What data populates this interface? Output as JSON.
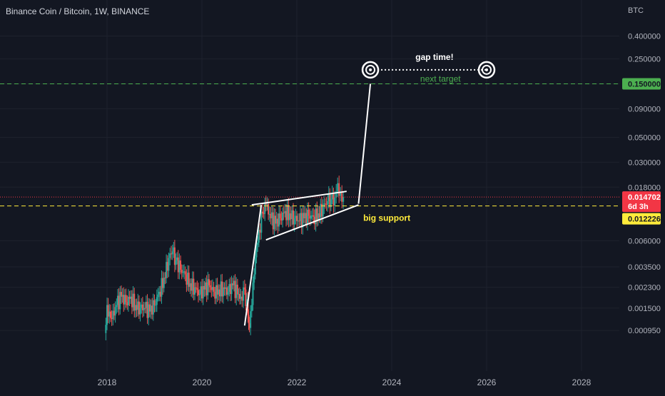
{
  "header": {
    "title": "Binance Coin / Bitcoin, 1W, BINANCE",
    "currency": "BTC"
  },
  "price_scale": {
    "labels": [
      "0.400000",
      "0.250000",
      "0.150000",
      "0.090000",
      "0.050000",
      "0.030000",
      "0.018000",
      "0.014702",
      "0.012226",
      "0.006000",
      "0.003500",
      "0.002300",
      "0.001500",
      "0.000950"
    ],
    "current_price": "0.014702",
    "countdown": "6d 3h",
    "support_price": "0.012226",
    "target_price": "0.150000"
  },
  "time_axis": {
    "labels": [
      "2018",
      "2020",
      "2022",
      "2024",
      "2026",
      "2028"
    ]
  },
  "annotations": {
    "gap_time": "gap time!",
    "next_target": "next target",
    "big_support": "big support"
  },
  "colors": {
    "background": "#131722",
    "up": "#26a69a",
    "down": "#ef5350",
    "target_line": "#4caf50",
    "support_line": "#ffeb3b",
    "current_price": "#f23645",
    "drawings": "#ffffff"
  },
  "chart_data": {
    "type": "candlestick",
    "title": "Binance Coin / Bitcoin, 1W, BINANCE",
    "y_unit": "BTC",
    "y_scale": "log",
    "ylim": [
      0.0008,
      0.55
    ],
    "xlim": [
      2017.6,
      2029.2
    ],
    "x_ticks": [
      2018,
      2020,
      2022,
      2024,
      2026,
      2028
    ],
    "y_ticks": [
      0.4,
      0.25,
      0.15,
      0.09,
      0.05,
      0.03,
      0.018,
      0.006,
      0.0035,
      0.0023,
      0.0015,
      0.00095
    ],
    "grid": true,
    "legend": "none",
    "series_close": [
      [
        2017.95,
        0.0009
      ],
      [
        2018.0,
        0.0016
      ],
      [
        2018.05,
        0.0014
      ],
      [
        2018.1,
        0.0012
      ],
      [
        2018.2,
        0.0016
      ],
      [
        2018.3,
        0.0019
      ],
      [
        2018.4,
        0.0017
      ],
      [
        2018.5,
        0.0019
      ],
      [
        2018.6,
        0.0016
      ],
      [
        2018.7,
        0.0015
      ],
      [
        2018.8,
        0.0015
      ],
      [
        2018.9,
        0.0014
      ],
      [
        2019.0,
        0.0016
      ],
      [
        2019.1,
        0.0021
      ],
      [
        2019.2,
        0.0028
      ],
      [
        2019.3,
        0.0042
      ],
      [
        2019.38,
        0.0048
      ],
      [
        2019.45,
        0.004
      ],
      [
        2019.55,
        0.0033
      ],
      [
        2019.65,
        0.003
      ],
      [
        2019.75,
        0.0025
      ],
      [
        2019.85,
        0.0023
      ],
      [
        2019.95,
        0.002
      ],
      [
        2020.05,
        0.0022
      ],
      [
        2020.15,
        0.0024
      ],
      [
        2020.25,
        0.0021
      ],
      [
        2020.35,
        0.0022
      ],
      [
        2020.45,
        0.0023
      ],
      [
        2020.55,
        0.0021
      ],
      [
        2020.65,
        0.0024
      ],
      [
        2020.75,
        0.002
      ],
      [
        2020.82,
        0.0019
      ],
      [
        2020.9,
        0.0022
      ],
      [
        2020.97,
        0.0013
      ],
      [
        2021.0,
        0.001
      ],
      [
        2021.05,
        0.0016
      ],
      [
        2021.1,
        0.003
      ],
      [
        2021.15,
        0.0055
      ],
      [
        2021.2,
        0.0075
      ],
      [
        2021.28,
        0.0105
      ],
      [
        2021.35,
        0.0125
      ],
      [
        2021.45,
        0.0095
      ],
      [
        2021.55,
        0.0085
      ],
      [
        2021.65,
        0.0095
      ],
      [
        2021.75,
        0.011
      ],
      [
        2021.85,
        0.0105
      ],
      [
        2021.95,
        0.0095
      ],
      [
        2022.05,
        0.009
      ],
      [
        2022.15,
        0.0095
      ],
      [
        2022.25,
        0.01
      ],
      [
        2022.35,
        0.0098
      ],
      [
        2022.45,
        0.0105
      ],
      [
        2022.55,
        0.012
      ],
      [
        2022.65,
        0.0135
      ],
      [
        2022.72,
        0.014
      ],
      [
        2022.8,
        0.0145
      ],
      [
        2022.86,
        0.0195
      ],
      [
        2022.92,
        0.016
      ],
      [
        2022.98,
        0.0147
      ]
    ],
    "horizontal_lines": [
      {
        "label": "next target",
        "value": 0.15
      },
      {
        "label": "big support",
        "value": 0.012226
      },
      {
        "label": "current price",
        "value": 0.014702
      }
    ],
    "drawings": [
      {
        "kind": "channel-upper",
        "points": [
          [
            2021.05,
            0.0125
          ],
          [
            2023.05,
            0.0165
          ]
        ]
      },
      {
        "kind": "channel-lower",
        "points": [
          [
            2021.35,
            0.0061
          ],
          [
            2023.3,
            0.0125
          ]
        ]
      },
      {
        "kind": "projection",
        "points": [
          [
            2020.9,
            0.00105
          ],
          [
            2021.25,
            0.0125
          ]
        ]
      },
      {
        "kind": "projection",
        "points": [
          [
            2023.3,
            0.0128
          ],
          [
            2023.55,
            0.15
          ]
        ]
      },
      {
        "kind": "dotted",
        "points": [
          [
            2023.55,
            0.2
          ],
          [
            2026.0,
            0.2
          ]
        ]
      }
    ]
  }
}
